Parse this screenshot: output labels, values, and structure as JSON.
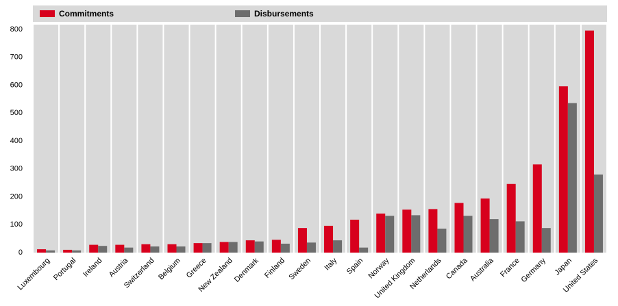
{
  "chart_data": {
    "type": "bar",
    "categories": [
      "Luxembourg",
      "Portugal",
      "Ireland",
      "Austria",
      "Switzerland",
      "Belgium",
      "Greece",
      "New Zealand",
      "Denmark",
      "Finland",
      "Sweden",
      "Italy",
      "Spain",
      "Norway",
      "United Kingdom",
      "Netherlands",
      "Canada",
      "Australia",
      "France",
      "Germany",
      "Japan",
      "United States"
    ],
    "series": [
      {
        "name": "Commitments",
        "color": "#d7001d",
        "values": [
          12,
          10,
          28,
          28,
          30,
          30,
          34,
          38,
          44,
          46,
          88,
          96,
          118,
          140,
          154,
          156,
          178,
          194,
          246,
          316,
          596,
          796
        ]
      },
      {
        "name": "Disbursements",
        "color": "#6d6d6d",
        "values": [
          8,
          8,
          24,
          18,
          22,
          22,
          34,
          38,
          40,
          32,
          36,
          44,
          18,
          132,
          134,
          86,
          132,
          120,
          112,
          88,
          536,
          280
        ]
      }
    ],
    "ylim": [
      0,
      800
    ],
    "yticks": [
      0,
      100,
      200,
      300,
      400,
      500,
      600,
      700,
      800
    ],
    "grid": false,
    "legend": "top"
  }
}
